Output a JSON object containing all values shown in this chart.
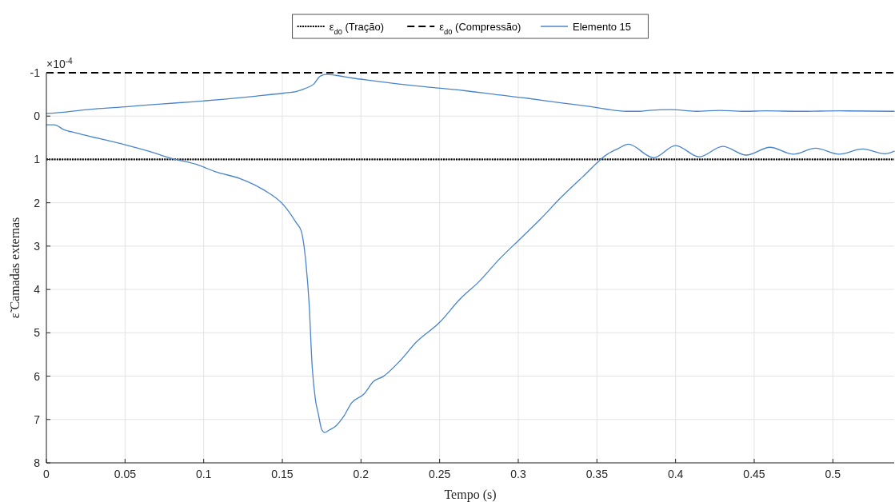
{
  "chart_data": {
    "type": "line",
    "xlabel": "Tempo (s)",
    "ylabel": "ε̃ Camadas externas",
    "annotations": [
      "×10$^{-4}$"
    ],
    "xlim": [
      0,
      0.539
    ],
    "xticks": [
      0,
      0.05,
      0.1,
      0.15,
      0.2,
      0.25,
      0.3,
      0.35,
      0.4,
      0.45,
      0.5
    ],
    "ylim": [
      8,
      -1
    ],
    "yticks": [
      -1,
      0,
      1,
      2,
      3,
      4,
      5,
      6,
      7,
      8
    ],
    "grid": true,
    "legend": "top",
    "line_style": "solid",
    "marker": "none",
    "ref_lines": [
      {
        "axis": "y",
        "value": 1,
        "label": "ε$_{d0}$ (Tração)",
        "color": "#000000",
        "line_style": "dotted"
      },
      {
        "axis": "y",
        "value": -1,
        "label": "ε$_{d0}$ (Compressão)",
        "color": "#000000",
        "line_style": "dashed"
      }
    ],
    "series": [
      {
        "name": "Elemento 15",
        "color": "#4a84cc",
        "x": [
          0,
          0.011,
          0.026,
          0.052,
          0.073,
          0.093,
          0.113,
          0.133,
          0.151,
          0.159,
          0.164,
          0.17,
          0.174,
          0.178,
          0.184,
          0.194,
          0.209,
          0.224,
          0.245,
          0.265,
          0.285,
          0.306,
          0.326,
          0.346,
          0.369,
          0.377,
          0.383,
          0.397,
          0.413,
          0.428,
          0.443,
          0.458,
          0.479,
          0.504,
          0.539
        ],
        "values": [
          -0.06,
          -0.09,
          -0.15,
          -0.22,
          -0.28,
          -0.33,
          -0.39,
          -0.46,
          -0.53,
          -0.57,
          -0.63,
          -0.74,
          -0.92,
          -0.96,
          -0.94,
          -0.88,
          -0.81,
          -0.74,
          -0.66,
          -0.59,
          -0.5,
          -0.41,
          -0.31,
          -0.22,
          -0.11,
          -0.11,
          -0.13,
          -0.15,
          -0.11,
          -0.13,
          -0.11,
          -0.12,
          -0.11,
          -0.12,
          -0.11
        ]
      },
      {
        "color": "#4a84cc",
        "x": [
          0,
          0.005,
          0.011,
          0.019,
          0.029,
          0.042,
          0.052,
          0.065,
          0.08,
          0.095,
          0.108,
          0.123,
          0.138,
          0.151,
          0.159,
          0.162,
          0.165,
          0.167,
          0.169,
          0.171,
          0.173,
          0.175,
          0.177,
          0.18,
          0.184,
          0.189,
          0.194,
          0.202,
          0.208,
          0.214,
          0.225,
          0.235,
          0.25,
          0.263,
          0.275,
          0.288,
          0.301,
          0.314,
          0.326,
          0.341,
          0.357,
          0.364,
          0.37,
          0.386,
          0.4,
          0.415,
          0.43,
          0.445,
          0.46,
          0.475,
          0.489,
          0.504,
          0.519,
          0.533,
          0.539
        ],
        "values": [
          0.2,
          0.2,
          0.31,
          0.39,
          0.48,
          0.59,
          0.68,
          0.81,
          0.98,
          1.11,
          1.29,
          1.44,
          1.7,
          2.06,
          2.47,
          2.65,
          3.39,
          4.31,
          5.79,
          6.53,
          6.89,
          7.23,
          7.3,
          7.24,
          7.15,
          6.93,
          6.62,
          6.41,
          6.12,
          6.01,
          5.64,
          5.22,
          4.76,
          4.22,
          3.82,
          3.3,
          2.84,
          2.38,
          1.92,
          1.4,
          0.87,
          0.74,
          0.65,
          0.96,
          0.68,
          0.94,
          0.7,
          0.9,
          0.72,
          0.88,
          0.74,
          0.88,
          0.76,
          0.87,
          0.81
        ]
      }
    ]
  }
}
